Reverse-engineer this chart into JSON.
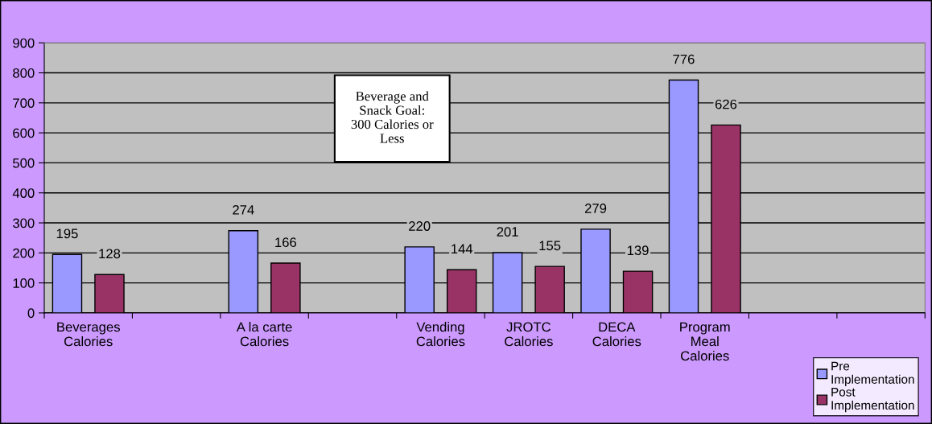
{
  "chart_data": {
    "type": "bar",
    "categories": [
      "Beverages\nCalories",
      null,
      "A la carte\nCalories",
      null,
      "Vending\nCalories",
      "JROTC\nCalories",
      "DECA\nCalories",
      "Program\nMeal\nCalories",
      null,
      null
    ],
    "series": [
      {
        "name": "Pre\nImplementation",
        "color": "#9999ff",
        "values": [
          195,
          null,
          274,
          null,
          220,
          201,
          279,
          776,
          null,
          null
        ]
      },
      {
        "name": "Post\nImplementation",
        "color": "#993366",
        "values": [
          128,
          null,
          166,
          null,
          144,
          155,
          139,
          626,
          null,
          null
        ]
      }
    ],
    "ylim": [
      0,
      900
    ],
    "yticks": [
      0,
      100,
      200,
      300,
      400,
      500,
      600,
      700,
      800,
      900
    ],
    "grid": "y",
    "legend": "bottom right",
    "data_labels": true,
    "annotations": [
      "Beverage and\nSnack Goal:\n300 Calories or\nLess"
    ]
  }
}
